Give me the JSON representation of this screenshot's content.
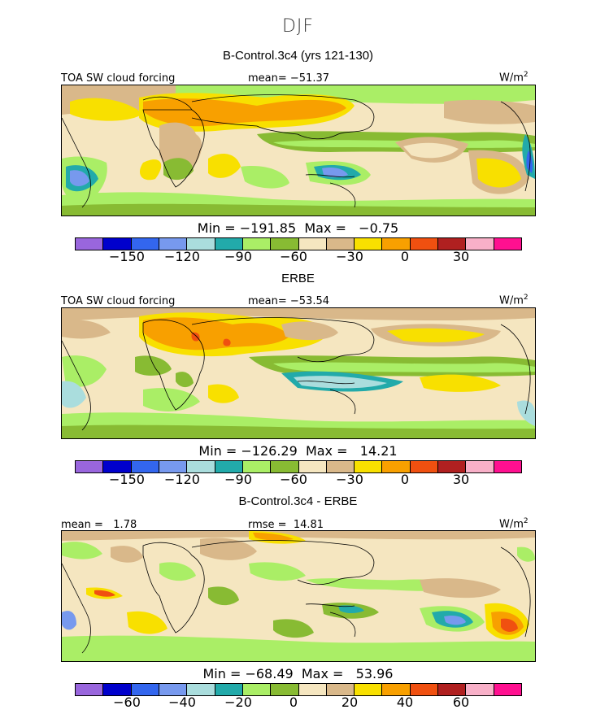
{
  "title": "DJF",
  "panels": [
    {
      "subtitle": "B-Control.3c4 (yrs 121-130)",
      "left_label": "TOA SW cloud forcing",
      "mid_label": "mean= −51.37",
      "units": "W/m",
      "units_sup": "2",
      "min_max": "Min = −191.85  Max =   −0.75",
      "ticks": [
        "−150",
        "−120",
        "−90",
        "−60",
        "−30",
        "0",
        "30"
      ]
    },
    {
      "subtitle": "ERBE",
      "left_label": "TOA SW cloud forcing",
      "mid_label": "mean= −53.54",
      "units": "W/m",
      "units_sup": "2",
      "min_max": "Min = −126.29  Max =   14.21",
      "ticks": [
        "−150",
        "−120",
        "−90",
        "−60",
        "−30",
        "0",
        "30"
      ]
    },
    {
      "subtitle": "B-Control.3c4 - ERBE",
      "left_label": "mean =   1.78",
      "mid_label": "rmse =  14.81",
      "units": "W/m",
      "units_sup": "2",
      "min_max": "Min = −68.49  Max =   53.96",
      "ticks": [
        "−60",
        "−40",
        "−20",
        "0",
        "20",
        "40",
        "60"
      ]
    }
  ],
  "colorbar_colors": [
    "#9966dd",
    "#0000cc",
    "#3366ee",
    "#7799ee",
    "#aadddd",
    "#22aaaa",
    "#aaee66",
    "#88bb33",
    "#f5e6c0",
    "#d9b88a",
    "#f8e000",
    "#f8a000",
    "#f05010",
    "#b02020",
    "#f8b0c8",
    "#ff1090"
  ],
  "map_palette": {
    "cream": "#f5e6c0",
    "tan": "#d9b88a",
    "yellow": "#f8e000",
    "orange": "#f8a000",
    "red": "#f05010",
    "lightgreen": "#aaee66",
    "green": "#88bb33",
    "teal": "#22aaaa",
    "lightcyan": "#aadddd",
    "lightblue": "#7799ee",
    "blue": "#3366ee"
  }
}
